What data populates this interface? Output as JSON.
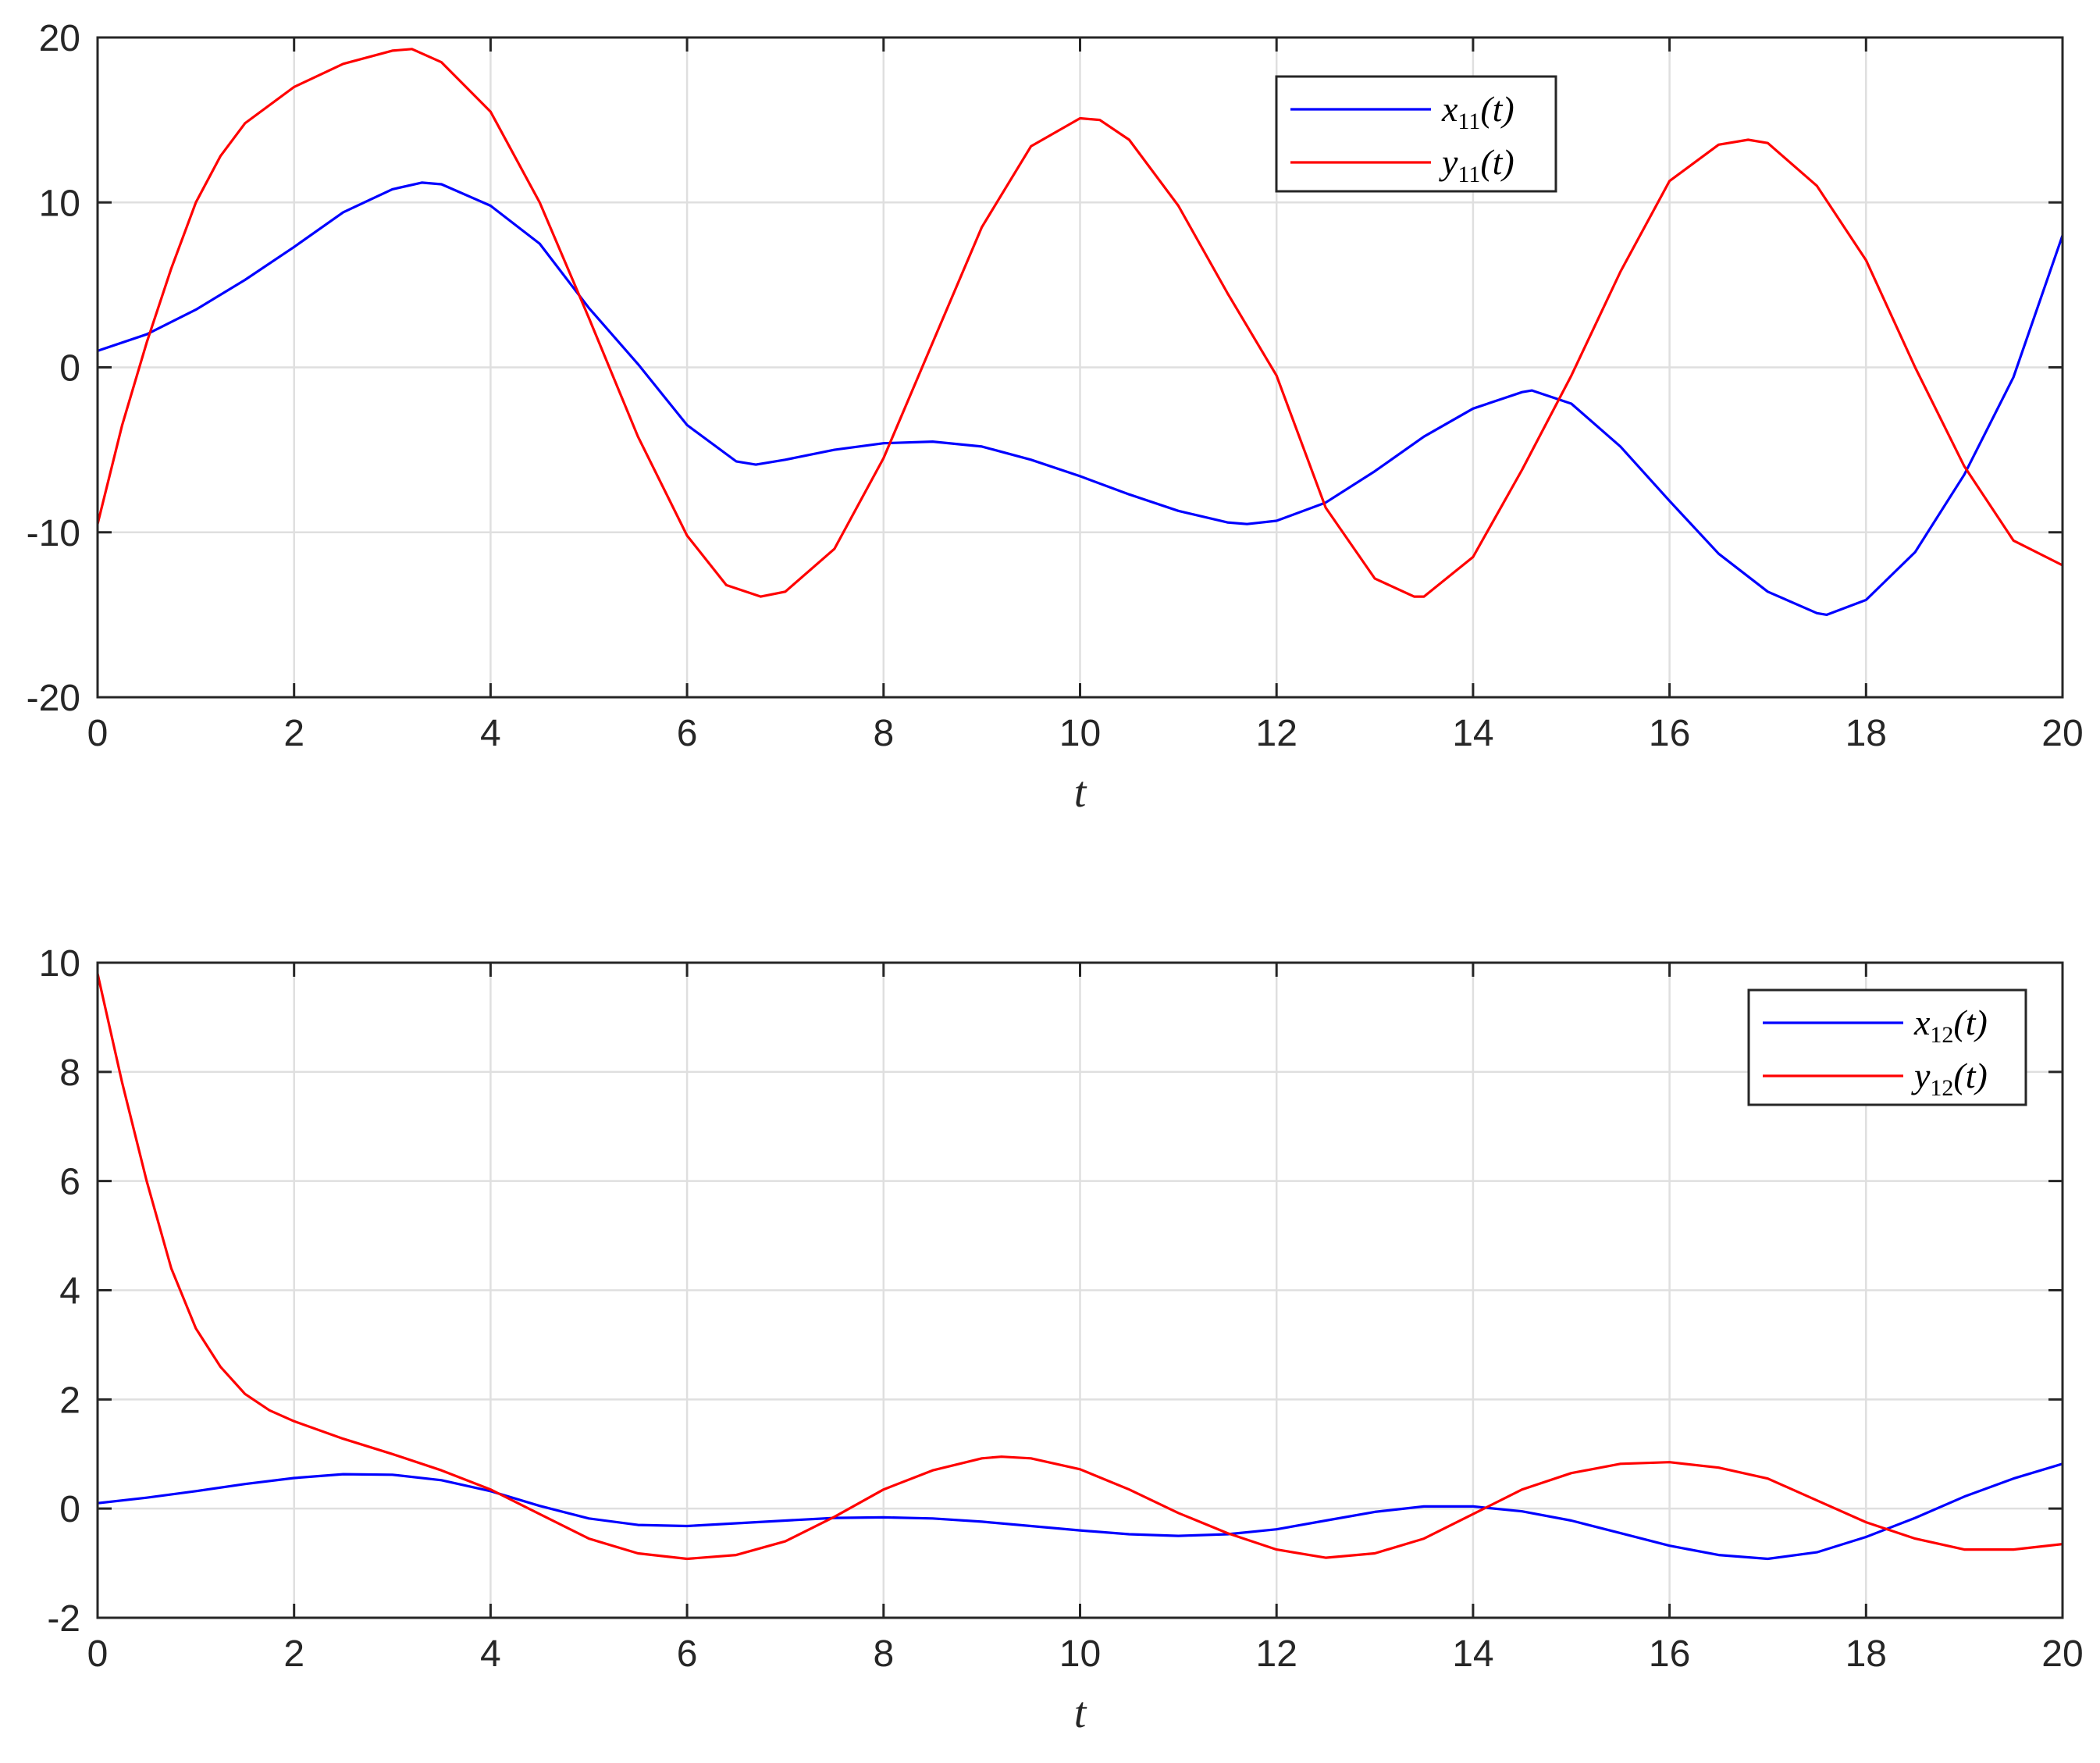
{
  "chart_data": [
    {
      "type": "line",
      "xlabel": "t",
      "ylabel": "",
      "xlim": [
        0,
        20
      ],
      "ylim": [
        -20,
        20
      ],
      "xticks": [
        "0",
        "2",
        "4",
        "6",
        "8",
        "10",
        "12",
        "14",
        "16",
        "18",
        "20"
      ],
      "yticks": [
        "-20",
        "-10",
        "0",
        "10",
        "20"
      ],
      "grid": true,
      "legend_position": "top-center-right",
      "colors": {
        "x": "#0000ff",
        "y": "#ff0000"
      },
      "series": [
        {
          "name": "x11(t)",
          "legend_main": "x",
          "legend_sub": "11",
          "legend_suffix": "(t)",
          "color": "#0000ff",
          "x": [
            0,
            0.5,
            1,
            1.5,
            2,
            2.5,
            3,
            3.3,
            3.5,
            4,
            4.5,
            5,
            5.5,
            6,
            6.5,
            6.7,
            7,
            7.5,
            8,
            8.5,
            9,
            9.5,
            10,
            10.5,
            11,
            11.5,
            11.7,
            12,
            12.5,
            13,
            13.5,
            14,
            14.5,
            14.6,
            15,
            15.5,
            16,
            16.5,
            17,
            17.5,
            17.6,
            18,
            18.5,
            19,
            19.5,
            20
          ],
          "y": [
            1.0,
            2.0,
            3.5,
            5.3,
            7.3,
            9.4,
            10.8,
            11.2,
            11.1,
            9.8,
            7.5,
            3.6,
            0.2,
            -3.5,
            -5.7,
            -5.9,
            -5.6,
            -5.0,
            -4.6,
            -4.5,
            -4.8,
            -5.6,
            -6.6,
            -7.7,
            -8.7,
            -9.4,
            -9.5,
            -9.3,
            -8.2,
            -6.3,
            -4.2,
            -2.5,
            -1.5,
            -1.4,
            -2.2,
            -4.8,
            -8.1,
            -11.3,
            -13.6,
            -14.9,
            -15.0,
            -14.1,
            -11.2,
            -6.5,
            -0.6,
            8.0
          ]
        },
        {
          "name": "y11(t)",
          "legend_main": "y",
          "legend_sub": "11",
          "legend_suffix": "(t)",
          "color": "#ff0000",
          "x": [
            0,
            0.25,
            0.5,
            0.75,
            1,
            1.25,
            1.5,
            2,
            2.5,
            3,
            3.2,
            3.5,
            4,
            4.5,
            5,
            5.5,
            6,
            6.4,
            6.75,
            7,
            7.5,
            8,
            8.5,
            9,
            9.5,
            10,
            10.2,
            10.5,
            11,
            11.5,
            12,
            12.5,
            13,
            13.4,
            13.5,
            14,
            14.5,
            15,
            15.5,
            16,
            16.5,
            16.8,
            17,
            17.5,
            18,
            18.5,
            19,
            19.5,
            20
          ],
          "y": [
            -9.5,
            -3.5,
            1.5,
            6.0,
            10.0,
            12.8,
            14.8,
            17.0,
            18.4,
            19.2,
            19.3,
            18.5,
            15.5,
            10.0,
            3.0,
            -4.2,
            -10.2,
            -13.2,
            -13.9,
            -13.6,
            -11.0,
            -5.5,
            1.5,
            8.5,
            13.4,
            15.1,
            15.0,
            13.8,
            9.8,
            4.5,
            -0.5,
            -8.5,
            -12.8,
            -13.9,
            -13.9,
            -11.5,
            -6.2,
            -0.5,
            5.8,
            11.3,
            13.5,
            13.8,
            13.6,
            11.0,
            6.5,
            0.0,
            -6.0,
            -10.5,
            -12.0
          ]
        }
      ]
    },
    {
      "type": "line",
      "xlabel": "t",
      "ylabel": "",
      "xlim": [
        0,
        20
      ],
      "ylim": [
        -2,
        10
      ],
      "xticks": [
        "0",
        "2",
        "4",
        "6",
        "8",
        "10",
        "12",
        "14",
        "16",
        "18",
        "20"
      ],
      "yticks": [
        "-2",
        "0",
        "2",
        "4",
        "6",
        "8",
        "10"
      ],
      "grid": true,
      "legend_position": "top-right",
      "colors": {
        "x": "#0000ff",
        "y": "#ff0000"
      },
      "series": [
        {
          "name": "x12(t)",
          "legend_main": "x",
          "legend_sub": "12",
          "legend_suffix": "(t)",
          "color": "#0000ff",
          "x": [
            0,
            0.5,
            1,
            1.5,
            2,
            2.5,
            3,
            3.5,
            4,
            4.5,
            5,
            5.5,
            6,
            6.5,
            7,
            7.5,
            8,
            8.5,
            9,
            9.5,
            10,
            10.5,
            11,
            11.5,
            12,
            12.5,
            13,
            13.5,
            14,
            14.5,
            15,
            15.5,
            16,
            16.5,
            17,
            17.5,
            18,
            18.5,
            19,
            19.5,
            20
          ],
          "y": [
            0.1,
            0.2,
            0.32,
            0.45,
            0.56,
            0.63,
            0.62,
            0.52,
            0.32,
            0.05,
            -0.18,
            -0.3,
            -0.32,
            -0.27,
            -0.22,
            -0.17,
            -0.16,
            -0.18,
            -0.24,
            -0.32,
            -0.4,
            -0.47,
            -0.5,
            -0.47,
            -0.38,
            -0.22,
            -0.06,
            0.04,
            0.04,
            -0.05,
            -0.22,
            -0.45,
            -0.68,
            -0.85,
            -0.92,
            -0.8,
            -0.52,
            -0.17,
            0.22,
            0.55,
            0.82
          ]
        },
        {
          "name": "y12(t)",
          "legend_main": "y",
          "legend_sub": "12",
          "legend_suffix": "(t)",
          "color": "#ff0000",
          "x": [
            0,
            0.25,
            0.5,
            0.75,
            1,
            1.25,
            1.5,
            1.75,
            2,
            2.5,
            3,
            3.5,
            4,
            4.5,
            5,
            5.5,
            6,
            6.5,
            7,
            7.5,
            8,
            8.5,
            9,
            9.2,
            9.5,
            10,
            10.5,
            11,
            11.5,
            12,
            12.5,
            13,
            13.5,
            14,
            14.5,
            15,
            15.5,
            16,
            16.5,
            17,
            17.5,
            18,
            18.5,
            19,
            19.5,
            20
          ],
          "y": [
            9.8,
            7.8,
            6.0,
            4.4,
            3.3,
            2.6,
            2.1,
            1.8,
            1.6,
            1.28,
            1.0,
            0.7,
            0.35,
            -0.1,
            -0.55,
            -0.82,
            -0.92,
            -0.85,
            -0.6,
            -0.15,
            0.35,
            0.7,
            0.92,
            0.95,
            0.92,
            0.72,
            0.35,
            -0.08,
            -0.45,
            -0.75,
            -0.9,
            -0.82,
            -0.55,
            -0.1,
            0.35,
            0.65,
            0.82,
            0.85,
            0.75,
            0.55,
            0.15,
            -0.25,
            -0.55,
            -0.75,
            -0.75,
            -0.65
          ]
        }
      ]
    }
  ]
}
